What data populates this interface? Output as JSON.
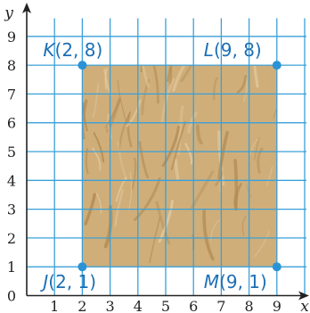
{
  "diagram": {
    "x_axis": {
      "label": "x",
      "range": [
        0,
        10
      ],
      "ticks": [
        "0",
        "1",
        "2",
        "3",
        "4",
        "5",
        "6",
        "7",
        "8",
        "9"
      ]
    },
    "y_axis": {
      "label": "y",
      "range": [
        0,
        10
      ],
      "ticks": [
        "0",
        "1",
        "2",
        "3",
        "4",
        "5",
        "6",
        "7",
        "8",
        "9"
      ]
    },
    "grid": true,
    "colors": {
      "grid": "#3aa0d8",
      "axis": "#222222",
      "point": "#2a93d5",
      "label": "#1d6fb5",
      "fill_base": "#cfae7a",
      "fill_grain": "#b08850",
      "fill_light": "#e3cba0"
    },
    "fill_texture": "wood-grain",
    "points": [
      {
        "letter": "K",
        "coords": "(2, 8)",
        "x": 2,
        "y": 8
      },
      {
        "letter": "L",
        "coords": "(9, 8)",
        "x": 9,
        "y": 8
      },
      {
        "letter": "J",
        "coords": "(2, 1)",
        "x": 2,
        "y": 1
      },
      {
        "letter": "M",
        "coords": "(9, 1)",
        "x": 9,
        "y": 1
      }
    ]
  }
}
